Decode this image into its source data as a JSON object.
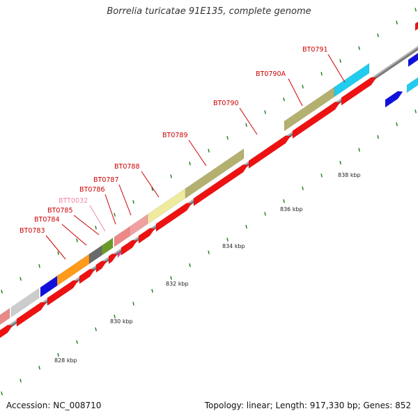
{
  "title": "Borrelia turicatae 91E135, complete genome",
  "footer": {
    "accession": "Accession: NC_008710",
    "summary": "Topology: linear; Length: 917,330 bp; Genes: 852"
  },
  "map": {
    "kbp_ticks": [
      {
        "label": "828 kbp",
        "kbp": 828
      },
      {
        "label": "830 kbp",
        "kbp": 830
      },
      {
        "label": "832 kbp",
        "kbp": 832
      },
      {
        "label": "834 kbp",
        "kbp": 834
      },
      {
        "label": "836 kbp",
        "kbp": 836
      },
      {
        "label": "838 kbp",
        "kbp": 838
      }
    ],
    "gene_labels": [
      {
        "text": "BT0783",
        "color": "#cc0000"
      },
      {
        "text": "BT0784",
        "color": "#cc0000"
      },
      {
        "text": "BT0785",
        "color": "#cc0000"
      },
      {
        "text": "BTT0032",
        "color": "#f08aa8"
      },
      {
        "text": "BT0786",
        "color": "#cc0000"
      },
      {
        "text": "BT0787",
        "color": "#cc0000"
      },
      {
        "text": "BT0788",
        "color": "#cc0000"
      },
      {
        "text": "BT0789",
        "color": "#cc0000"
      },
      {
        "text": "BT0790",
        "color": "#cc0000"
      },
      {
        "text": "BT0790A",
        "color": "#cc0000"
      },
      {
        "text": "BT0791",
        "color": "#cc0000"
      }
    ]
  }
}
